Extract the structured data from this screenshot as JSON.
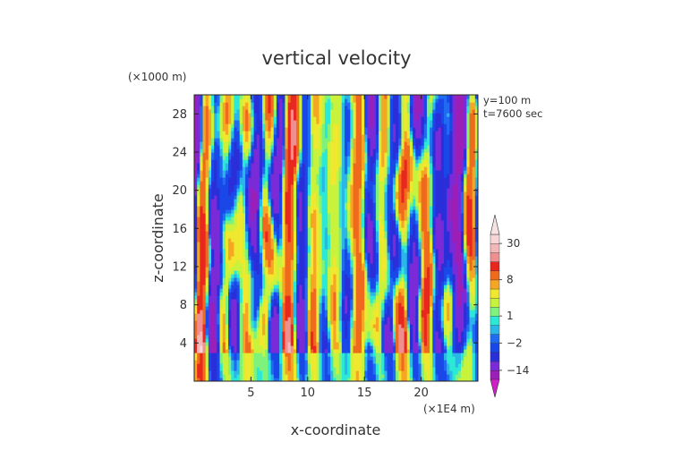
{
  "chart_data": {
    "type": "heatmap",
    "title": "vertical velocity",
    "xlabel": "x-coordinate",
    "ylabel": "z-coordinate",
    "x_unit_label": "(×1E4 m)",
    "y_unit_label": "(×1000 m)",
    "annotations": [
      "y=100 m",
      "t=7600 sec"
    ],
    "xlim": [
      0,
      25
    ],
    "ylim": [
      0,
      30
    ],
    "x_ticks": [
      5,
      10,
      15,
      20
    ],
    "x_tick_labels": [
      "5",
      "10",
      "15",
      "20"
    ],
    "y_ticks": [
      4,
      8,
      12,
      16,
      20,
      24,
      28
    ],
    "y_tick_labels": [
      "4",
      "8",
      "12",
      "16",
      "20",
      "24",
      "28"
    ],
    "colorbar": {
      "levels": [
        -20,
        -14,
        -8,
        -5,
        -2,
        -1,
        0,
        1,
        2,
        4,
        6,
        8,
        12,
        18,
        24,
        30,
        40
      ],
      "colors": [
        "#9c1fb7",
        "#7a2ad6",
        "#2b2fd9",
        "#1a48e8",
        "#1f6cf2",
        "#2bb6e8",
        "#2ce8d6",
        "#7ef27a",
        "#c8f23c",
        "#f0e82e",
        "#f5a623",
        "#f06a1e",
        "#e8281e",
        "#f08f8f",
        "#f2b8b8",
        "#f6d6d6"
      ],
      "tick_labels": [
        "30",
        "8",
        "1",
        "−2",
        "−14"
      ],
      "tick_values": [
        30,
        8,
        1,
        -2,
        -14
      ]
    }
  }
}
